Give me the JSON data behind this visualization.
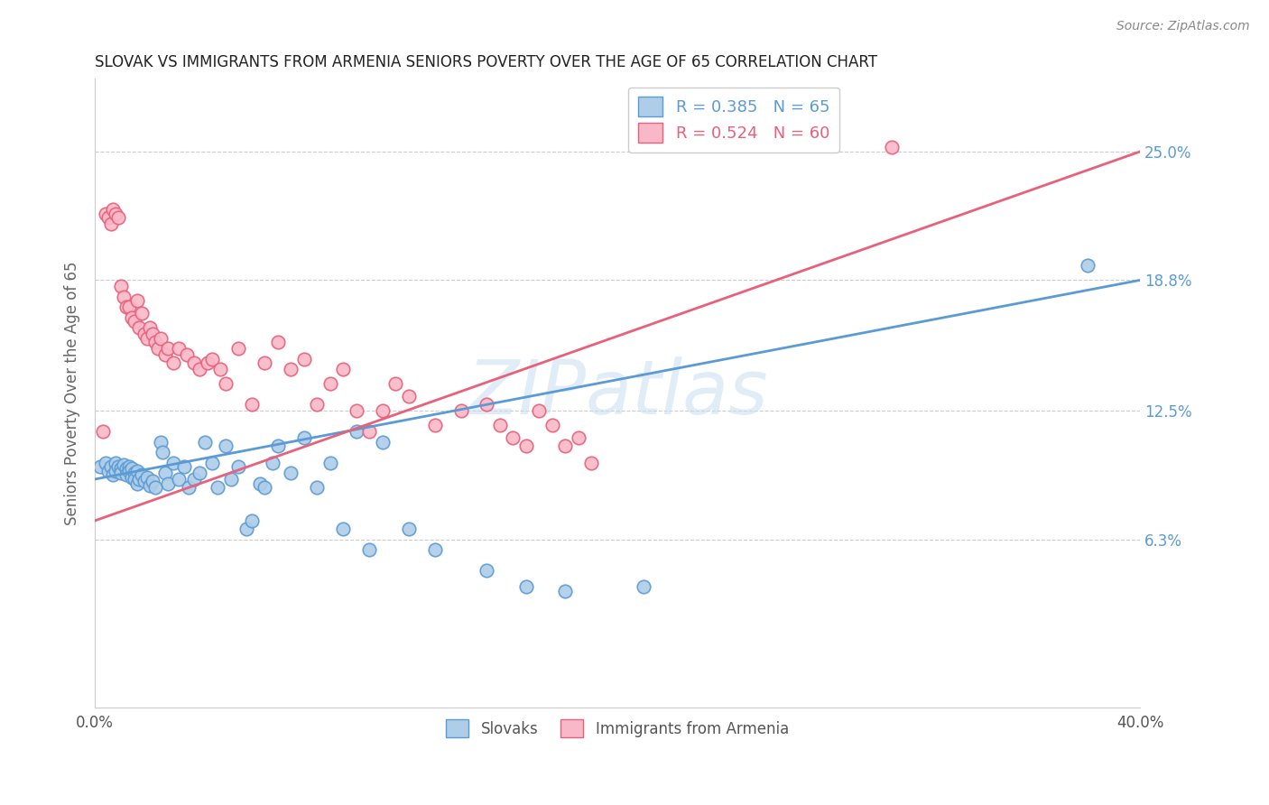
{
  "title": "SLOVAK VS IMMIGRANTS FROM ARMENIA SENIORS POVERTY OVER THE AGE OF 65 CORRELATION CHART",
  "source": "Source: ZipAtlas.com",
  "ylabel": "Seniors Poverty Over the Age of 65",
  "xlim": [
    0.0,
    0.4
  ],
  "ylim_low": -0.018,
  "ylim_high": 0.285,
  "ytick_positions": [
    0.063,
    0.125,
    0.188,
    0.25
  ],
  "ytick_labels": [
    "6.3%",
    "12.5%",
    "18.8%",
    "25.0%"
  ],
  "color_blue_fill": "#aecde8",
  "color_blue_edge": "#5b9bd5",
  "color_pink_fill": "#f9b8c8",
  "color_pink_edge": "#e8607a",
  "line_blue": "#5b9bd5",
  "line_pink": "#e8607a",
  "watermark": "ZIPatlas",
  "slovaks_x": [
    0.002,
    0.004,
    0.005,
    0.006,
    0.007,
    0.008,
    0.008,
    0.009,
    0.01,
    0.01,
    0.011,
    0.012,
    0.012,
    0.013,
    0.013,
    0.014,
    0.014,
    0.015,
    0.015,
    0.016,
    0.016,
    0.017,
    0.018,
    0.019,
    0.02,
    0.021,
    0.022,
    0.023,
    0.025,
    0.026,
    0.027,
    0.028,
    0.03,
    0.032,
    0.034,
    0.036,
    0.038,
    0.04,
    0.042,
    0.045,
    0.047,
    0.05,
    0.052,
    0.055,
    0.058,
    0.06,
    0.063,
    0.065,
    0.068,
    0.07,
    0.075,
    0.08,
    0.085,
    0.09,
    0.095,
    0.1,
    0.105,
    0.11,
    0.12,
    0.13,
    0.15,
    0.165,
    0.18,
    0.21,
    0.38
  ],
  "slovaks_y": [
    0.098,
    0.1,
    0.096,
    0.098,
    0.094,
    0.1,
    0.096,
    0.098,
    0.097,
    0.095,
    0.099,
    0.097,
    0.094,
    0.098,
    0.096,
    0.093,
    0.097,
    0.095,
    0.092,
    0.096,
    0.09,
    0.092,
    0.094,
    0.091,
    0.093,
    0.089,
    0.091,
    0.088,
    0.11,
    0.105,
    0.095,
    0.09,
    0.1,
    0.092,
    0.098,
    0.088,
    0.092,
    0.095,
    0.11,
    0.1,
    0.088,
    0.108,
    0.092,
    0.098,
    0.068,
    0.072,
    0.09,
    0.088,
    0.1,
    0.108,
    0.095,
    0.112,
    0.088,
    0.1,
    0.068,
    0.115,
    0.058,
    0.11,
    0.068,
    0.058,
    0.048,
    0.04,
    0.038,
    0.04,
    0.195
  ],
  "armenia_x": [
    0.003,
    0.004,
    0.005,
    0.006,
    0.007,
    0.008,
    0.009,
    0.01,
    0.011,
    0.012,
    0.013,
    0.014,
    0.015,
    0.016,
    0.017,
    0.018,
    0.019,
    0.02,
    0.021,
    0.022,
    0.023,
    0.024,
    0.025,
    0.027,
    0.028,
    0.03,
    0.032,
    0.035,
    0.038,
    0.04,
    0.043,
    0.045,
    0.048,
    0.05,
    0.055,
    0.06,
    0.065,
    0.07,
    0.075,
    0.08,
    0.085,
    0.09,
    0.095,
    0.1,
    0.105,
    0.11,
    0.115,
    0.12,
    0.13,
    0.14,
    0.15,
    0.155,
    0.16,
    0.165,
    0.17,
    0.175,
    0.18,
    0.185,
    0.19,
    0.305
  ],
  "armenia_y": [
    0.115,
    0.22,
    0.218,
    0.215,
    0.222,
    0.22,
    0.218,
    0.185,
    0.18,
    0.175,
    0.175,
    0.17,
    0.168,
    0.178,
    0.165,
    0.172,
    0.162,
    0.16,
    0.165,
    0.162,
    0.158,
    0.155,
    0.16,
    0.152,
    0.155,
    0.148,
    0.155,
    0.152,
    0.148,
    0.145,
    0.148,
    0.15,
    0.145,
    0.138,
    0.155,
    0.128,
    0.148,
    0.158,
    0.145,
    0.15,
    0.128,
    0.138,
    0.145,
    0.125,
    0.115,
    0.125,
    0.138,
    0.132,
    0.118,
    0.125,
    0.128,
    0.118,
    0.112,
    0.108,
    0.125,
    0.118,
    0.108,
    0.112,
    0.1,
    0.252
  ],
  "blue_line_x0": 0.0,
  "blue_line_y0": 0.092,
  "blue_line_x1": 0.4,
  "blue_line_y1": 0.188,
  "pink_line_x0": 0.0,
  "pink_line_y0": 0.072,
  "pink_line_x1": 0.4,
  "pink_line_y1": 0.25
}
